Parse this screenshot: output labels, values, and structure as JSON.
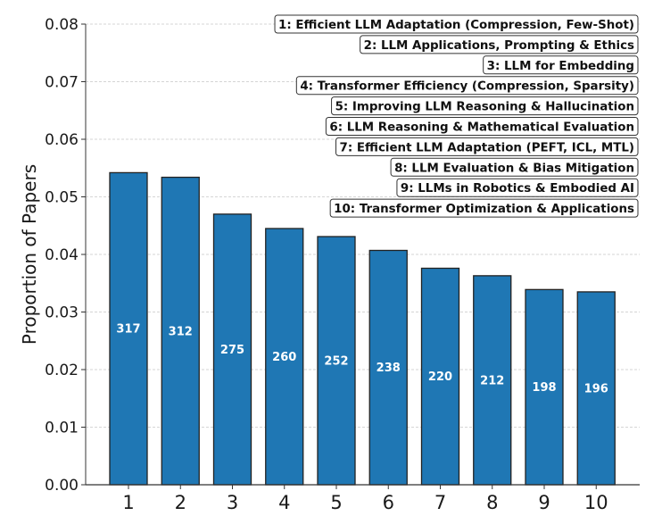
{
  "chart_data": {
    "type": "bar",
    "title": "",
    "xlabel": "",
    "ylabel": "Proportion of Papers",
    "categories": [
      "1",
      "2",
      "3",
      "4",
      "5",
      "6",
      "7",
      "8",
      "9",
      "10"
    ],
    "counts": [
      317,
      312,
      275,
      260,
      252,
      238,
      220,
      212,
      198,
      196
    ],
    "values": [
      0.0542,
      0.0534,
      0.047,
      0.0445,
      0.0431,
      0.0407,
      0.0376,
      0.0363,
      0.0339,
      0.0335
    ],
    "ylim": [
      0,
      0.08
    ],
    "yticks": [
      "0.00",
      "0.01",
      "0.02",
      "0.03",
      "0.04",
      "0.05",
      "0.06",
      "0.07",
      "0.08"
    ],
    "grid": "horizontal-dashed",
    "bar_color": "#1f77b4",
    "bar_edge_color": "#222222",
    "bar_label_color": "#ffffff",
    "legend_placement": "top-right",
    "legend_entries": [
      "1: Efficient LLM Adaptation (Compression, Few-Shot)",
      "2: LLM Applications, Prompting & Ethics",
      "3: LLM for Embedding",
      "4: Transformer Efficiency (Compression, Sparsity)",
      "5: Improving LLM Reasoning & Hallucination",
      "6: LLM Reasoning & Mathematical Evaluation",
      "7: Efficient LLM Adaptation (PEFT, ICL, MTL)",
      "8: LLM Evaluation & Bias Mitigation",
      "9: LLMs in Robotics & Embodied AI",
      "10: Transformer Optimization & Applications"
    ]
  }
}
